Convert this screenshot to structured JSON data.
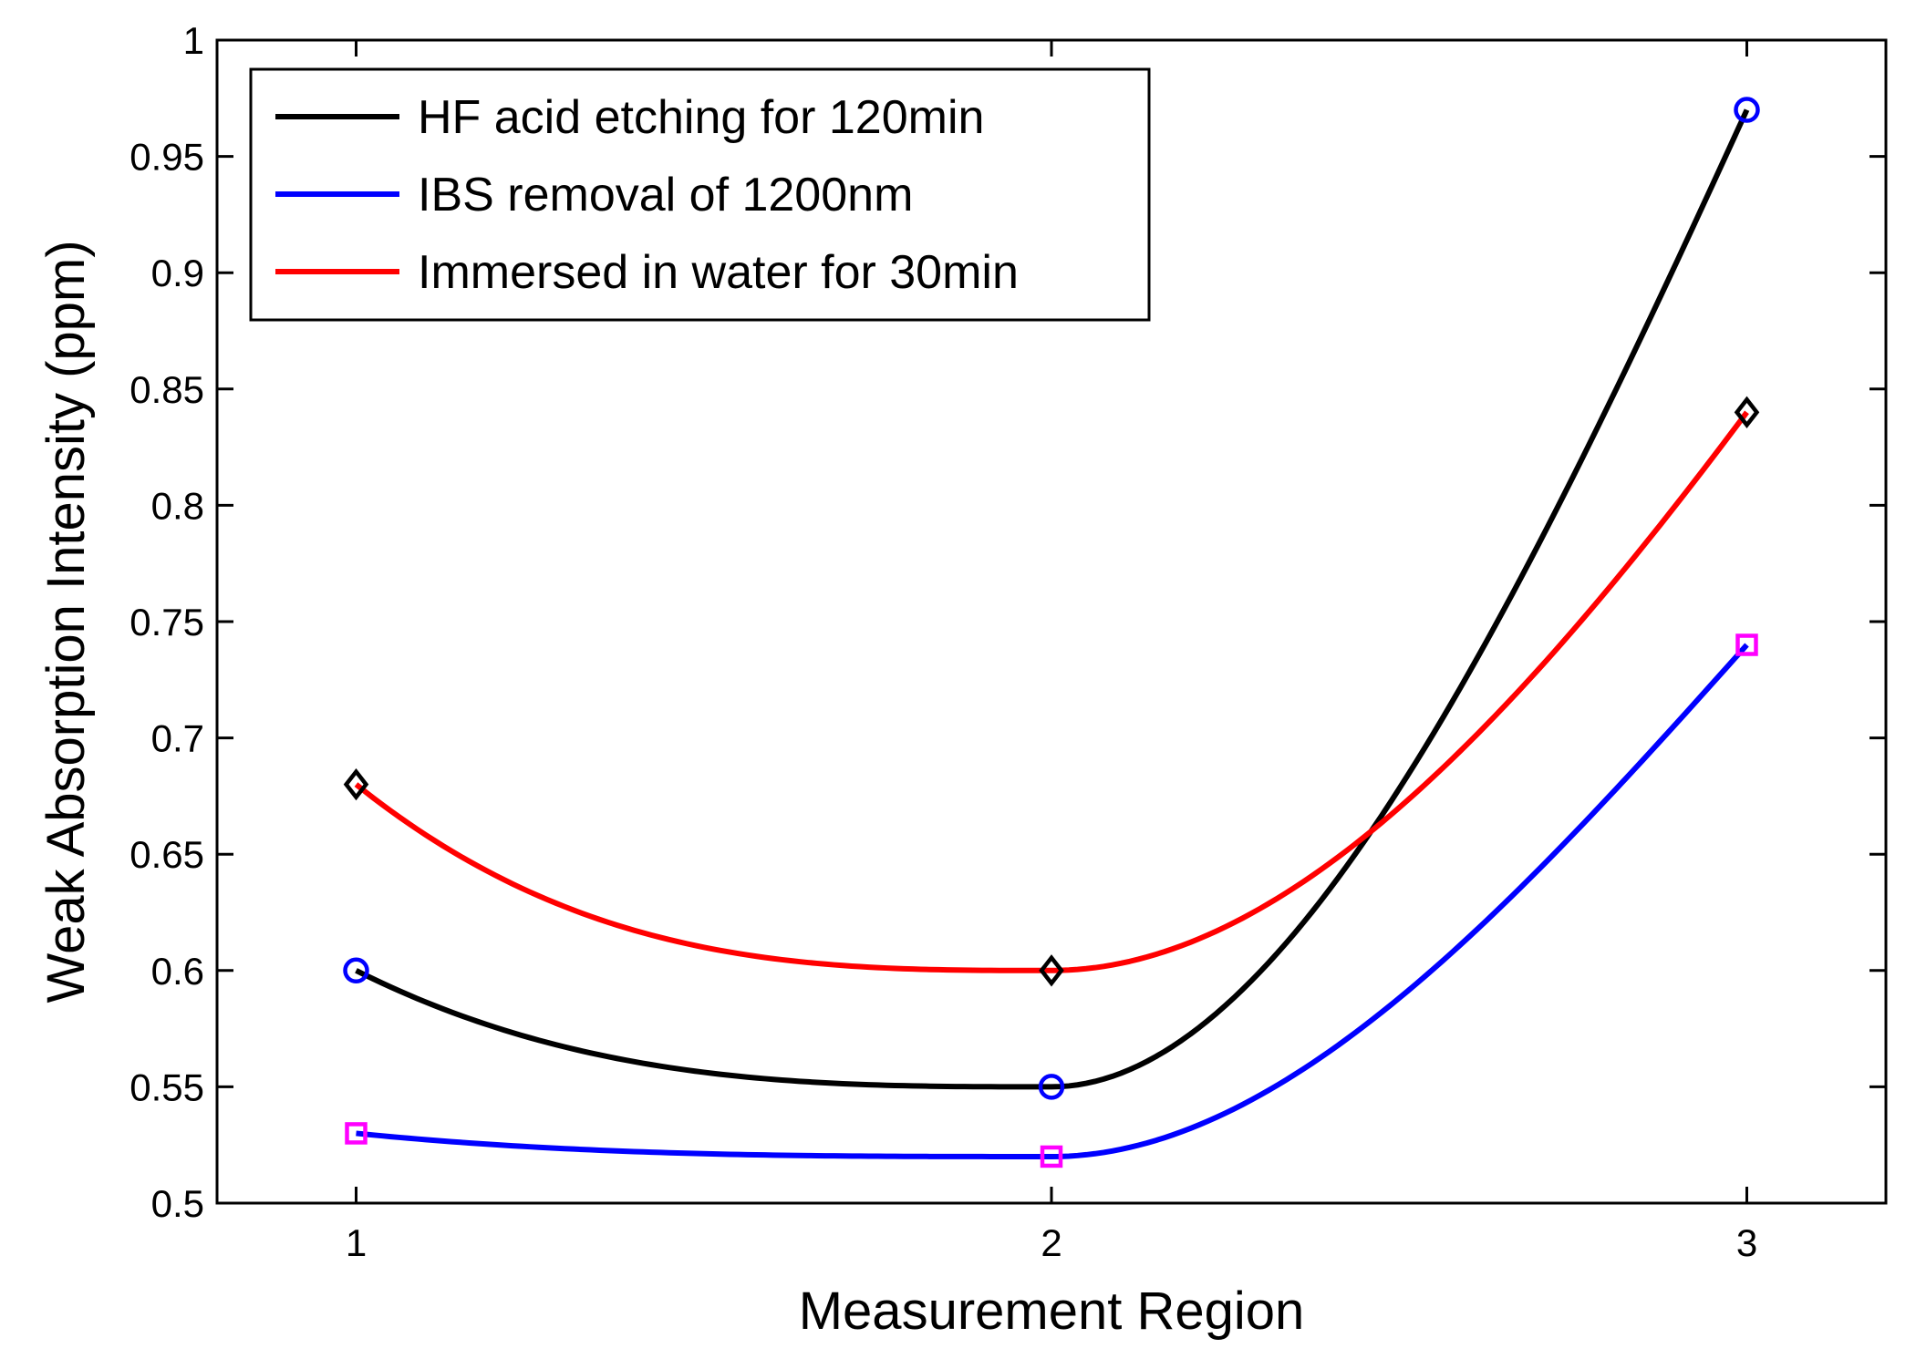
{
  "chart_data": {
    "type": "line",
    "title": "",
    "xlabel": "Measurement Region",
    "ylabel": "Weak Absorption Intensity (ppm)",
    "x": [
      1,
      2,
      3
    ],
    "xlim": [
      0.8,
      3.2
    ],
    "ylim": [
      0.5,
      1.0
    ],
    "xticks": [
      1,
      2,
      3
    ],
    "xtick_labels": [
      "1",
      "2",
      "3"
    ],
    "yticks": [
      0.5,
      0.55,
      0.6,
      0.65,
      0.7,
      0.75,
      0.8,
      0.85,
      0.9,
      0.95,
      1.0
    ],
    "ytick_labels": [
      "0.5",
      "0.55",
      "0.6",
      "0.65",
      "0.7",
      "0.75",
      "0.8",
      "0.85",
      "0.9",
      "0.95",
      "1"
    ],
    "grid": false,
    "legend_position": "top-left",
    "series": [
      {
        "name": "HF acid etching for 120min",
        "color": "#000000",
        "values": [
          0.6,
          0.55,
          0.97
        ],
        "marker": "circle",
        "marker_color": "#0000ff"
      },
      {
        "name": "IBS removal of 1200nm",
        "color": "#0000ff",
        "values": [
          0.53,
          0.52,
          0.74
        ],
        "marker": "square",
        "marker_color": "#ff00ff"
      },
      {
        "name": "Immersed in water for 30min",
        "color": "#ff0000",
        "values": [
          0.68,
          0.6,
          0.84
        ],
        "marker": "diamond",
        "marker_color": "#000000"
      }
    ]
  }
}
